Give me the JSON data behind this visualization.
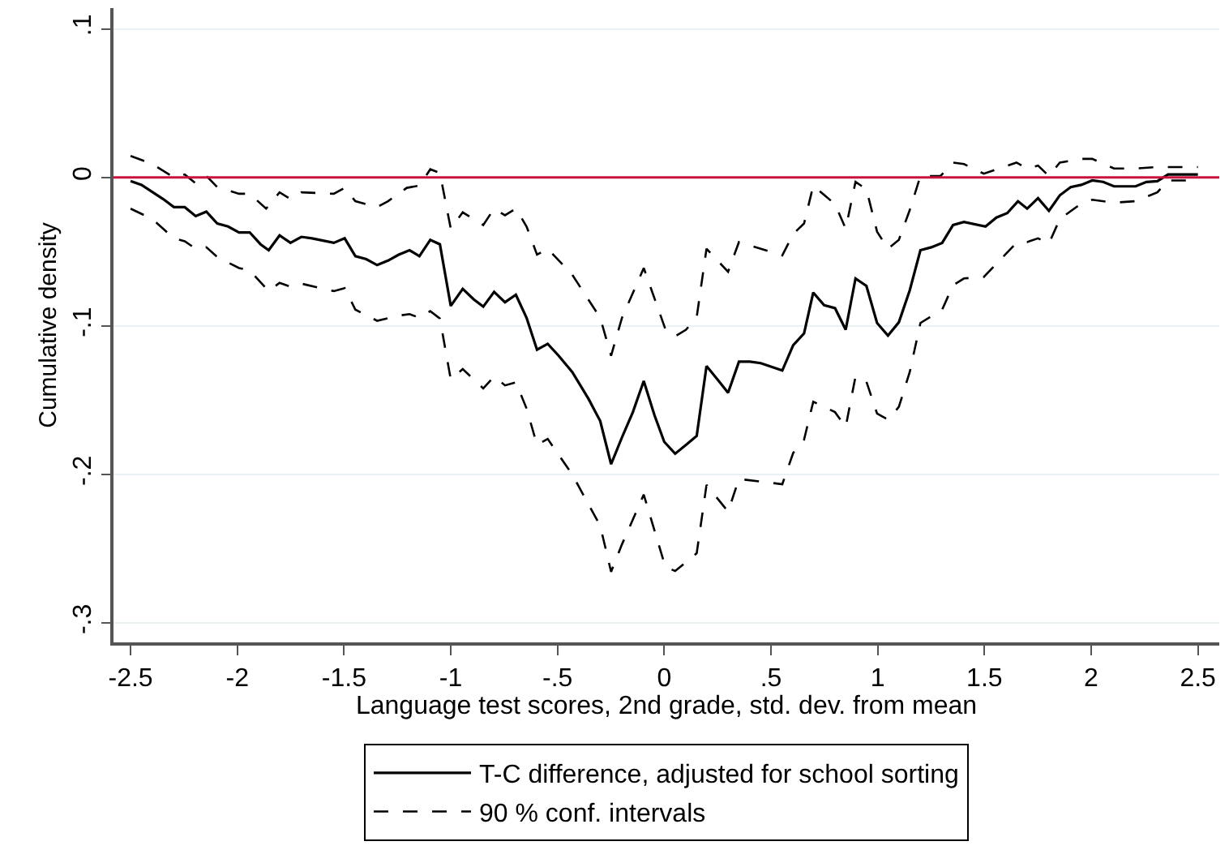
{
  "chart_data": {
    "type": "line",
    "xlabel": "Language test scores, 2nd grade, std. dev. from mean",
    "ylabel": "Cumulative density",
    "xlim": [
      -2.58,
      2.6
    ],
    "xticks": [
      -2.5,
      -2,
      -1.5,
      -1,
      {
        "value": -0.5,
        "label": "-.5"
      },
      0,
      {
        "value": 0.5,
        "label": ".5"
      },
      1,
      1.5,
      2,
      2.5
    ],
    "ylim": [
      -0.313,
      0.114
    ],
    "yticks": [
      {
        "value": -0.3,
        "label": "-.3"
      },
      {
        "value": -0.2,
        "label": "-.2"
      },
      {
        "value": -0.1,
        "label": "-.1"
      },
      0,
      {
        "value": 0.1,
        "label": ".1"
      }
    ],
    "grid": "y",
    "legend": "bottom",
    "marker": "none",
    "ref_lines": [
      {
        "axis": "y",
        "value": 0,
        "label": null,
        "color": "#c8143c",
        "line_style": "solid"
      }
    ],
    "series": [
      {
        "name": "T-C difference, adjusted for school sorting",
        "color": "#000000",
        "line_style": "solid",
        "x": [
          -2.5,
          -2.449,
          -2.348,
          -2.297,
          -2.246,
          -2.195,
          -2.145,
          -2.094,
          -2.043,
          -1.992,
          -1.942,
          -1.891,
          -1.853,
          -1.802,
          -1.751,
          -1.7,
          -1.65,
          -1.548,
          -1.497,
          -1.447,
          -1.396,
          -1.345,
          -1.294,
          -1.244,
          -1.193,
          -1.147,
          -1.096,
          -1.051,
          -1.0,
          -0.944,
          -0.893,
          -0.848,
          -0.797,
          -0.746,
          -0.695,
          -0.645,
          -0.596,
          -0.546,
          -0.495,
          -0.431,
          -0.355,
          -0.3,
          -0.249,
          -0.198,
          -0.147,
          -0.096,
          -0.046,
          0.0,
          0.051,
          0.102,
          0.152,
          0.198,
          0.249,
          0.299,
          0.35,
          0.401,
          0.452,
          0.553,
          0.604,
          0.655,
          0.698,
          0.749,
          0.8,
          0.85,
          0.896,
          0.947,
          0.997,
          1.048,
          1.099,
          1.15,
          1.2,
          1.251,
          1.302,
          1.353,
          1.404,
          1.505,
          1.556,
          1.607,
          1.657,
          1.7,
          1.751,
          1.802,
          1.853,
          1.904,
          1.954,
          2.005,
          2.056,
          2.107,
          2.208,
          2.259,
          2.31,
          2.36,
          2.5
        ],
        "values": [
          -0.0025,
          -0.005,
          -0.0145,
          -0.02,
          -0.02,
          -0.026,
          -0.023,
          -0.031,
          -0.033,
          -0.037,
          -0.037,
          -0.045,
          -0.049,
          -0.039,
          -0.044,
          -0.04,
          -0.041,
          -0.044,
          -0.041,
          -0.053,
          -0.055,
          -0.059,
          -0.056,
          -0.052,
          -0.049,
          -0.053,
          -0.042,
          -0.045,
          -0.0865,
          -0.075,
          -0.082,
          -0.087,
          -0.077,
          -0.084,
          -0.079,
          -0.0945,
          -0.116,
          -0.112,
          -0.12,
          -0.131,
          -0.149,
          -0.164,
          -0.193,
          -0.175,
          -0.158,
          -0.137,
          -0.16,
          -0.178,
          -0.186,
          -0.18,
          -0.174,
          -0.127,
          -0.136,
          -0.145,
          -0.124,
          -0.124,
          -0.125,
          -0.13,
          -0.113,
          -0.105,
          -0.0775,
          -0.086,
          -0.088,
          -0.1025,
          -0.068,
          -0.073,
          -0.098,
          -0.1065,
          -0.0975,
          -0.076,
          -0.049,
          -0.047,
          -0.044,
          -0.032,
          -0.03,
          -0.033,
          -0.027,
          -0.024,
          -0.016,
          -0.021,
          -0.014,
          -0.0225,
          -0.012,
          -0.0065,
          -0.005,
          -0.002,
          -0.003,
          -0.006,
          -0.006,
          -0.003,
          -0.0025,
          0.002,
          0.002
        ]
      },
      {
        "name": "90 % conf. intervals",
        "color": "#000000",
        "line_style": "dashed",
        "x": [
          -2.5,
          -2.398,
          -2.297,
          -2.246,
          -2.195,
          -2.145,
          -2.094,
          -1.992,
          -1.942,
          -1.865,
          -1.802,
          -1.751,
          -1.7,
          -1.548,
          -1.497,
          -1.447,
          -1.345,
          -1.294,
          -1.206,
          -1.147,
          -1.096,
          -1.051,
          -1.0,
          -0.944,
          -0.848,
          -0.797,
          -0.746,
          -0.695,
          -0.645,
          -0.596,
          -0.546,
          -0.431,
          -0.3,
          -0.249,
          -0.198,
          -0.096,
          0.005,
          0.051,
          0.102,
          0.152,
          0.198,
          0.299,
          0.35,
          0.553,
          0.604,
          0.655,
          0.698,
          0.8,
          0.85,
          0.896,
          0.947,
          0.997,
          1.048,
          1.099,
          1.15,
          1.2,
          1.294,
          1.353,
          1.404,
          1.497,
          1.65,
          1.7,
          1.751,
          1.802,
          1.853,
          1.954,
          2.005,
          2.107,
          2.208,
          2.31,
          2.5
        ],
        "values": [
          0.0145,
          0.009,
          0.0,
          0.002,
          -0.004,
          0.001,
          -0.0065,
          -0.011,
          -0.011,
          -0.021,
          -0.01,
          -0.0145,
          -0.01,
          -0.011,
          -0.007,
          -0.016,
          -0.02,
          -0.016,
          -0.007,
          -0.0055,
          0.0055,
          0.003,
          -0.0345,
          -0.0235,
          -0.032,
          -0.021,
          -0.0255,
          -0.021,
          -0.033,
          -0.052,
          -0.048,
          -0.0655,
          -0.0945,
          -0.12,
          -0.0945,
          -0.061,
          -0.102,
          -0.107,
          -0.1025,
          -0.094,
          -0.048,
          -0.0635,
          -0.0435,
          -0.0525,
          -0.038,
          -0.031,
          -0.0055,
          -0.018,
          -0.0345,
          -0.003,
          -0.008,
          -0.0365,
          -0.048,
          -0.042,
          -0.022,
          0.001,
          0.001,
          0.01,
          0.009,
          0.0025,
          0.01,
          0.006,
          0.008,
          0.001,
          0.01,
          0.0125,
          0.0125,
          0.006,
          0.006,
          0.007,
          0.007
        ]
      },
      {
        "color": "#000000",
        "line_style": "dashed",
        "x": [
          -2.5,
          -2.398,
          -2.297,
          -2.246,
          -2.195,
          -2.145,
          -2.094,
          -1.992,
          -1.942,
          -1.853,
          -1.802,
          -1.751,
          -1.7,
          -1.548,
          -1.497,
          -1.447,
          -1.345,
          -1.244,
          -1.193,
          -1.147,
          -1.096,
          -1.051,
          -1.0,
          -0.944,
          -0.848,
          -0.797,
          -0.746,
          -0.695,
          -0.645,
          -0.596,
          -0.546,
          -0.431,
          -0.3,
          -0.249,
          -0.198,
          -0.096,
          0.005,
          0.051,
          0.102,
          0.152,
          0.198,
          0.299,
          0.35,
          0.553,
          0.604,
          0.655,
          0.698,
          0.8,
          0.85,
          0.896,
          0.947,
          0.997,
          1.048,
          1.099,
          1.15,
          1.2,
          1.302,
          1.353,
          1.404,
          1.497,
          1.65,
          1.7,
          1.751,
          1.802,
          1.853,
          1.954,
          2.005,
          2.107,
          2.208,
          2.31,
          2.36,
          2.5
        ],
        "values": [
          -0.021,
          -0.028,
          -0.041,
          -0.043,
          -0.048,
          -0.047,
          -0.0535,
          -0.061,
          -0.0625,
          -0.0765,
          -0.071,
          -0.0735,
          -0.0715,
          -0.0765,
          -0.0745,
          -0.089,
          -0.0965,
          -0.093,
          -0.092,
          -0.0945,
          -0.09,
          -0.095,
          -0.136,
          -0.129,
          -0.142,
          -0.134,
          -0.14,
          -0.138,
          -0.1555,
          -0.18,
          -0.176,
          -0.2,
          -0.2345,
          -0.2655,
          -0.247,
          -0.2135,
          -0.262,
          -0.265,
          -0.259,
          -0.253,
          -0.207,
          -0.225,
          -0.203,
          -0.2065,
          -0.1855,
          -0.1765,
          -0.151,
          -0.158,
          -0.168,
          -0.134,
          -0.1375,
          -0.159,
          -0.163,
          -0.1545,
          -0.131,
          -0.098,
          -0.089,
          -0.0725,
          -0.068,
          -0.067,
          -0.044,
          -0.0435,
          -0.041,
          -0.0445,
          -0.028,
          -0.0175,
          -0.015,
          -0.017,
          -0.016,
          -0.01,
          -0.002,
          -0.002
        ]
      }
    ]
  }
}
